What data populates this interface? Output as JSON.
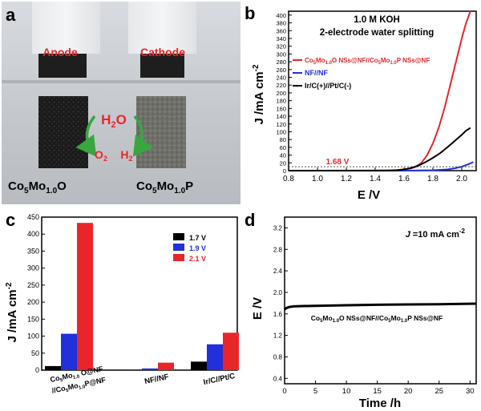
{
  "colors": {
    "red": "#e8262a",
    "blue": "#2130d8",
    "black": "#000000",
    "green": "#3aa640",
    "photo_bg": "#c9cdd2"
  },
  "panels": [
    {
      "letter": "a"
    },
    {
      "letter": "b"
    },
    {
      "letter": "c"
    },
    {
      "letter": "d"
    }
  ],
  "photo": {
    "anode_label": "Anode",
    "cathode_label": "Cathode",
    "h2o": "H",
    "h2o_sub": "2",
    "h2o_tail": "O",
    "o2": "O",
    "o2_sub": "2",
    "h2": "H",
    "h2_sub": "2",
    "left_material": {
      "pre": "Co",
      "s1": "5",
      "mid": "Mo",
      "s2": "1.0",
      "post": "O"
    },
    "right_material": {
      "pre": "Co",
      "s1": "5",
      "mid": "Mo",
      "s2": "1.0",
      "post": "P"
    }
  },
  "chart_data": [
    {
      "panel": "b",
      "type": "line",
      "annotation_line1": "1.0 M KOH",
      "annotation_line2": "2-electrode water splitting",
      "xlabel": "E /V",
      "ylabel": {
        "main": "J /mA cm",
        "sup": "-2"
      },
      "xlim": [
        0.8,
        2.1
      ],
      "ylim": [
        0,
        410
      ],
      "xticks": [
        "0.8",
        "1.0",
        "1.2",
        "1.4",
        "1.6",
        "1.8",
        "2.0"
      ],
      "yticks": [
        "0",
        "20",
        "40",
        "60",
        "80",
        "100",
        "120",
        "140",
        "160",
        "180",
        "200",
        "220",
        "240",
        "260",
        "280",
        "300",
        "320",
        "340",
        "360",
        "380",
        "400"
      ],
      "marker_label": "1.68 V",
      "reference_current": 10,
      "legend": [
        {
          "parts": [
            "Co",
            "5",
            "Mo",
            "1.0",
            "O NSs@NF//Co",
            "5",
            "Mo",
            "1.0",
            "P NSs@NF"
          ],
          "color": "#e8262a"
        },
        {
          "parts": [
            "NF//NF"
          ],
          "color": "#2130d8"
        },
        {
          "parts": [
            "Ir/C(+)//Pt/C(-)"
          ],
          "color": "#000000"
        }
      ],
      "series": [
        {
          "color": "#e8262a",
          "x": [
            0.8,
            1.4,
            1.55,
            1.6,
            1.65,
            1.68,
            1.72,
            1.76,
            1.8,
            1.84,
            1.88,
            1.92,
            1.96,
            2.0,
            2.03,
            2.06
          ],
          "y": [
            0,
            0.5,
            1.5,
            3,
            6,
            10,
            20,
            40,
            70,
            110,
            160,
            220,
            280,
            340,
            380,
            410
          ]
        },
        {
          "color": "#2130d8",
          "x": [
            0.8,
            1.6,
            1.7,
            1.8,
            1.9,
            1.95,
            2.0,
            2.05,
            2.08
          ],
          "y": [
            0,
            0,
            0.5,
            1,
            3,
            6,
            10,
            17,
            22
          ]
        },
        {
          "color": "#000000",
          "x": [
            0.8,
            1.5,
            1.55,
            1.6,
            1.65,
            1.7,
            1.75,
            1.8,
            1.85,
            1.9,
            1.95,
            2.0,
            2.03,
            2.06
          ],
          "y": [
            0,
            0,
            1,
            3,
            7,
            13,
            22,
            33,
            45,
            60,
            76,
            92,
            103,
            110
          ]
        }
      ]
    },
    {
      "panel": "c",
      "type": "bar",
      "ylabel": {
        "main": "J /mA cm",
        "sup": "-2"
      },
      "ylim": [
        0,
        450
      ],
      "yticks": [
        "0",
        "50",
        "100",
        "150",
        "200",
        "250",
        "300",
        "350",
        "400",
        "450"
      ],
      "legend": [
        {
          "name": "1.7 V",
          "color": "#000000"
        },
        {
          "name": "1.9 V",
          "color": "#2130d8"
        },
        {
          "name": "2.1 V",
          "color": "#e8262a"
        }
      ],
      "categories": [
        {
          "line1": {
            "pre": "Co",
            "s1": "5",
            "mid": "Mo",
            "s2": "1.0",
            "post": " O@NF"
          },
          "line2": {
            "pre": "//Co",
            "s1": "5",
            "mid": "Mo",
            "s2": "1.0",
            "post": "P@NF"
          }
        },
        {
          "line1": {
            "pre": "NF//NF",
            "s1": "",
            "mid": "",
            "s2": "",
            "post": ""
          }
        },
        {
          "line1": {
            "pre": "Ir/C//Pt/C",
            "s1": "",
            "mid": "",
            "s2": "",
            "post": ""
          }
        }
      ],
      "series": [
        {
          "name": "1.7 V",
          "values": [
            12,
            0,
            25
          ]
        },
        {
          "name": "1.9 V",
          "values": [
            107,
            5,
            76
          ]
        },
        {
          "name": "2.1 V",
          "values": [
            433,
            22,
            110
          ]
        }
      ]
    },
    {
      "panel": "d",
      "type": "line",
      "annotation": {
        "j": "J",
        "rest": " =10 mA cm",
        "sup": "-2"
      },
      "label": {
        "pre": "Co",
        "s1": "5",
        "mid": "Mo",
        "s2": "1.0",
        "post": "O NSs@NF//Co",
        "s3": "5",
        "mid2": "Mo",
        "s4": "1.0",
        "post2": "P NSs@NF"
      },
      "xlabel": "Time /h",
      "ylabel": "E /V",
      "xlim": [
        0,
        31
      ],
      "ylim": [
        0.3,
        3.4
      ],
      "xticks": [
        "0",
        "5",
        "10",
        "15",
        "20",
        "25",
        "30"
      ],
      "yticks": [
        "0.4",
        "0.8",
        "1.2",
        "1.6",
        "2.0",
        "2.4",
        "2.8",
        "3.2"
      ],
      "series": [
        {
          "color": "#000000",
          "x": [
            0,
            0.3,
            0.8,
            1.5,
            3,
            5,
            10,
            15,
            20,
            25,
            31
          ],
          "y": [
            1.68,
            1.71,
            1.73,
            1.74,
            1.745,
            1.75,
            1.76,
            1.77,
            1.775,
            1.78,
            1.79
          ]
        }
      ]
    }
  ]
}
